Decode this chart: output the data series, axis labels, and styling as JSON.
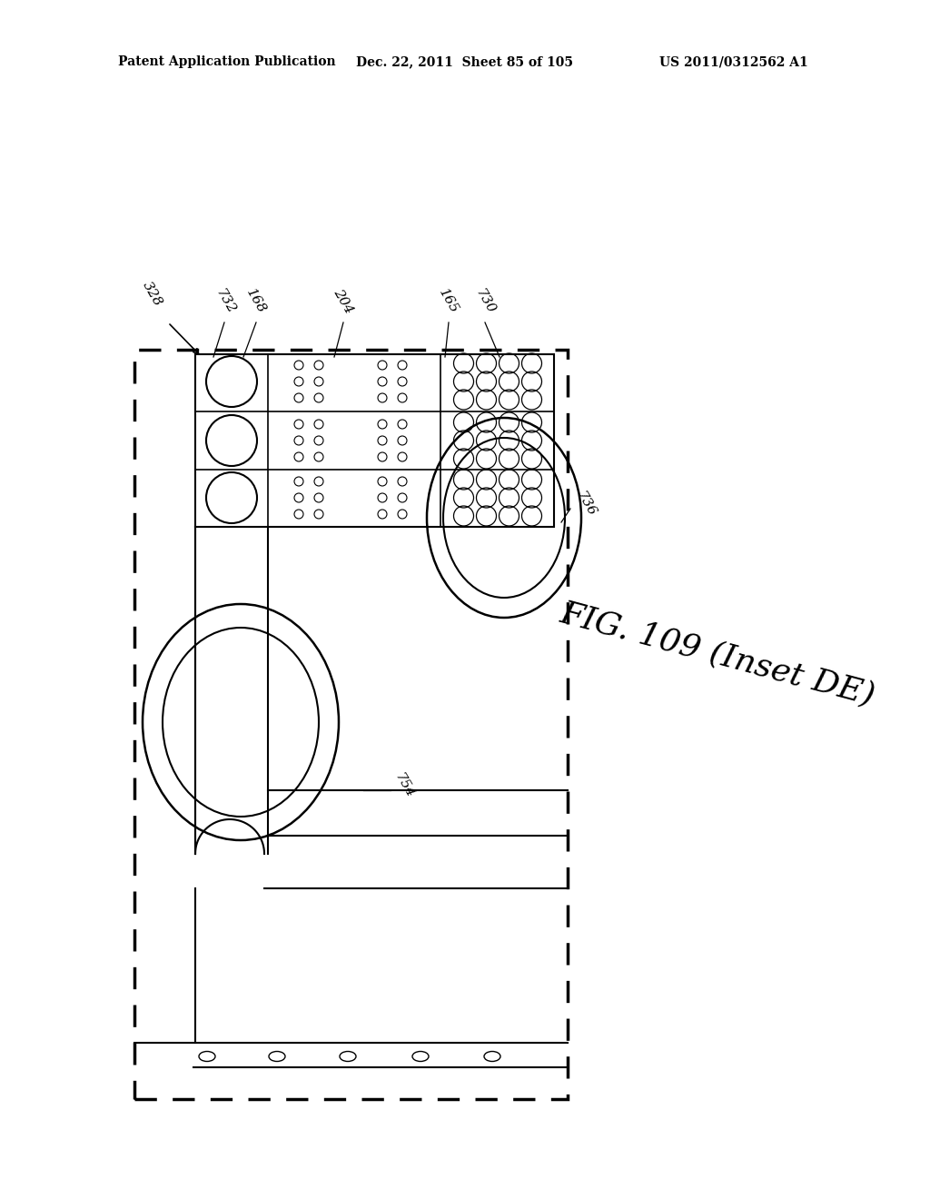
{
  "background_color": "#ffffff",
  "header_left": "Patent Application Publication",
  "header_mid": "Dec. 22, 2011  Sheet 85 of 105",
  "header_right": "US 2011/0312562 A1",
  "fig_label": "FIG. 109 (Inset DE)"
}
